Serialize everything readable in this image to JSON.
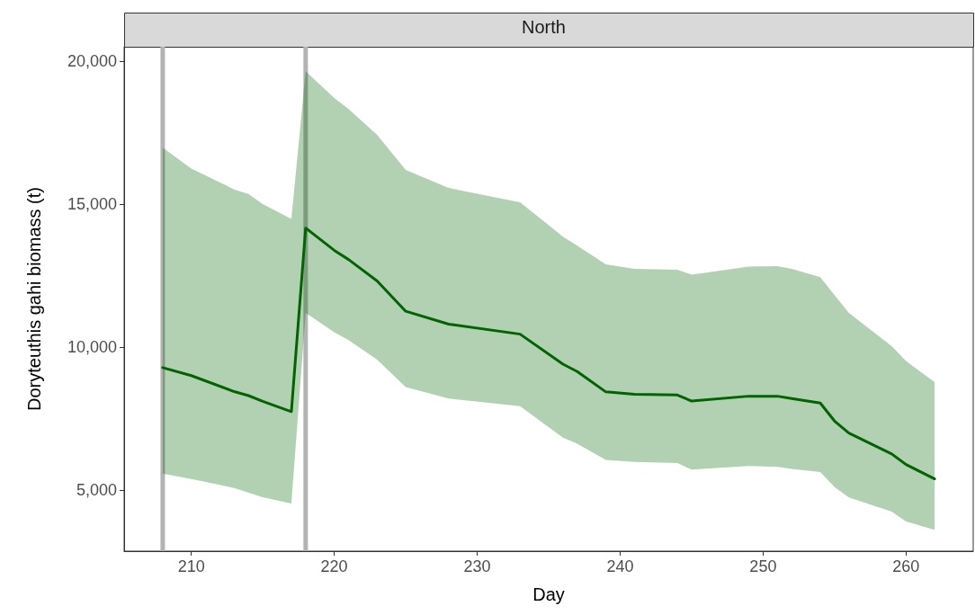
{
  "chart_data": {
    "type": "line",
    "title": "North",
    "xlabel": "Day",
    "ylabel": "Doryteuthis gahi biomass (t)",
    "x": [
      208,
      210,
      213,
      214,
      215,
      217,
      218,
      220,
      221,
      223,
      225,
      228,
      233,
      236,
      237,
      239,
      241,
      244,
      245,
      249,
      251,
      252,
      254,
      255,
      256,
      259,
      260,
      262
    ],
    "series": [
      {
        "color": "#006400",
        "values": [
          9280,
          9000,
          8440,
          8300,
          8100,
          7740,
          14160,
          13380,
          13060,
          12310,
          11250,
          10800,
          10450,
          9400,
          9140,
          8430,
          8350,
          8320,
          8110,
          8280,
          8280,
          8200,
          8040,
          7410,
          6990,
          6260,
          5890,
          5390
        ],
        "upper": [
          16970,
          16240,
          15510,
          15350,
          15000,
          14480,
          19640,
          18710,
          18320,
          17420,
          16190,
          15560,
          15060,
          13860,
          13540,
          12890,
          12730,
          12700,
          12530,
          12810,
          12830,
          12730,
          12440,
          11810,
          11190,
          10030,
          9510,
          8770
        ],
        "lower": [
          5570,
          5380,
          5070,
          4900,
          4750,
          4530,
          11190,
          10520,
          10240,
          9560,
          8600,
          8200,
          7930,
          6830,
          6620,
          6050,
          5980,
          5940,
          5710,
          5840,
          5810,
          5740,
          5630,
          5100,
          4740,
          4240,
          3900,
          3610
        ]
      }
    ],
    "xlim": [
      205.3,
      264.7
    ],
    "xticks": [
      210,
      220,
      230,
      240,
      250,
      260
    ],
    "ylim": [
      2860,
      20500
    ],
    "yticks": [
      {
        "value": 5000,
        "label": "5,000"
      },
      {
        "value": 10000,
        "label": "10,000"
      },
      {
        "value": 15000,
        "label": "15,000"
      },
      {
        "value": 20000,
        "label": "20,000"
      }
    ],
    "ref_lines": [
      {
        "axis": "x",
        "value": 208,
        "color": "#b3b3b3"
      },
      {
        "axis": "x",
        "value": 218,
        "color": "#b3b3b3"
      }
    ],
    "grid": false,
    "marker": "none",
    "line_style": "solid"
  }
}
